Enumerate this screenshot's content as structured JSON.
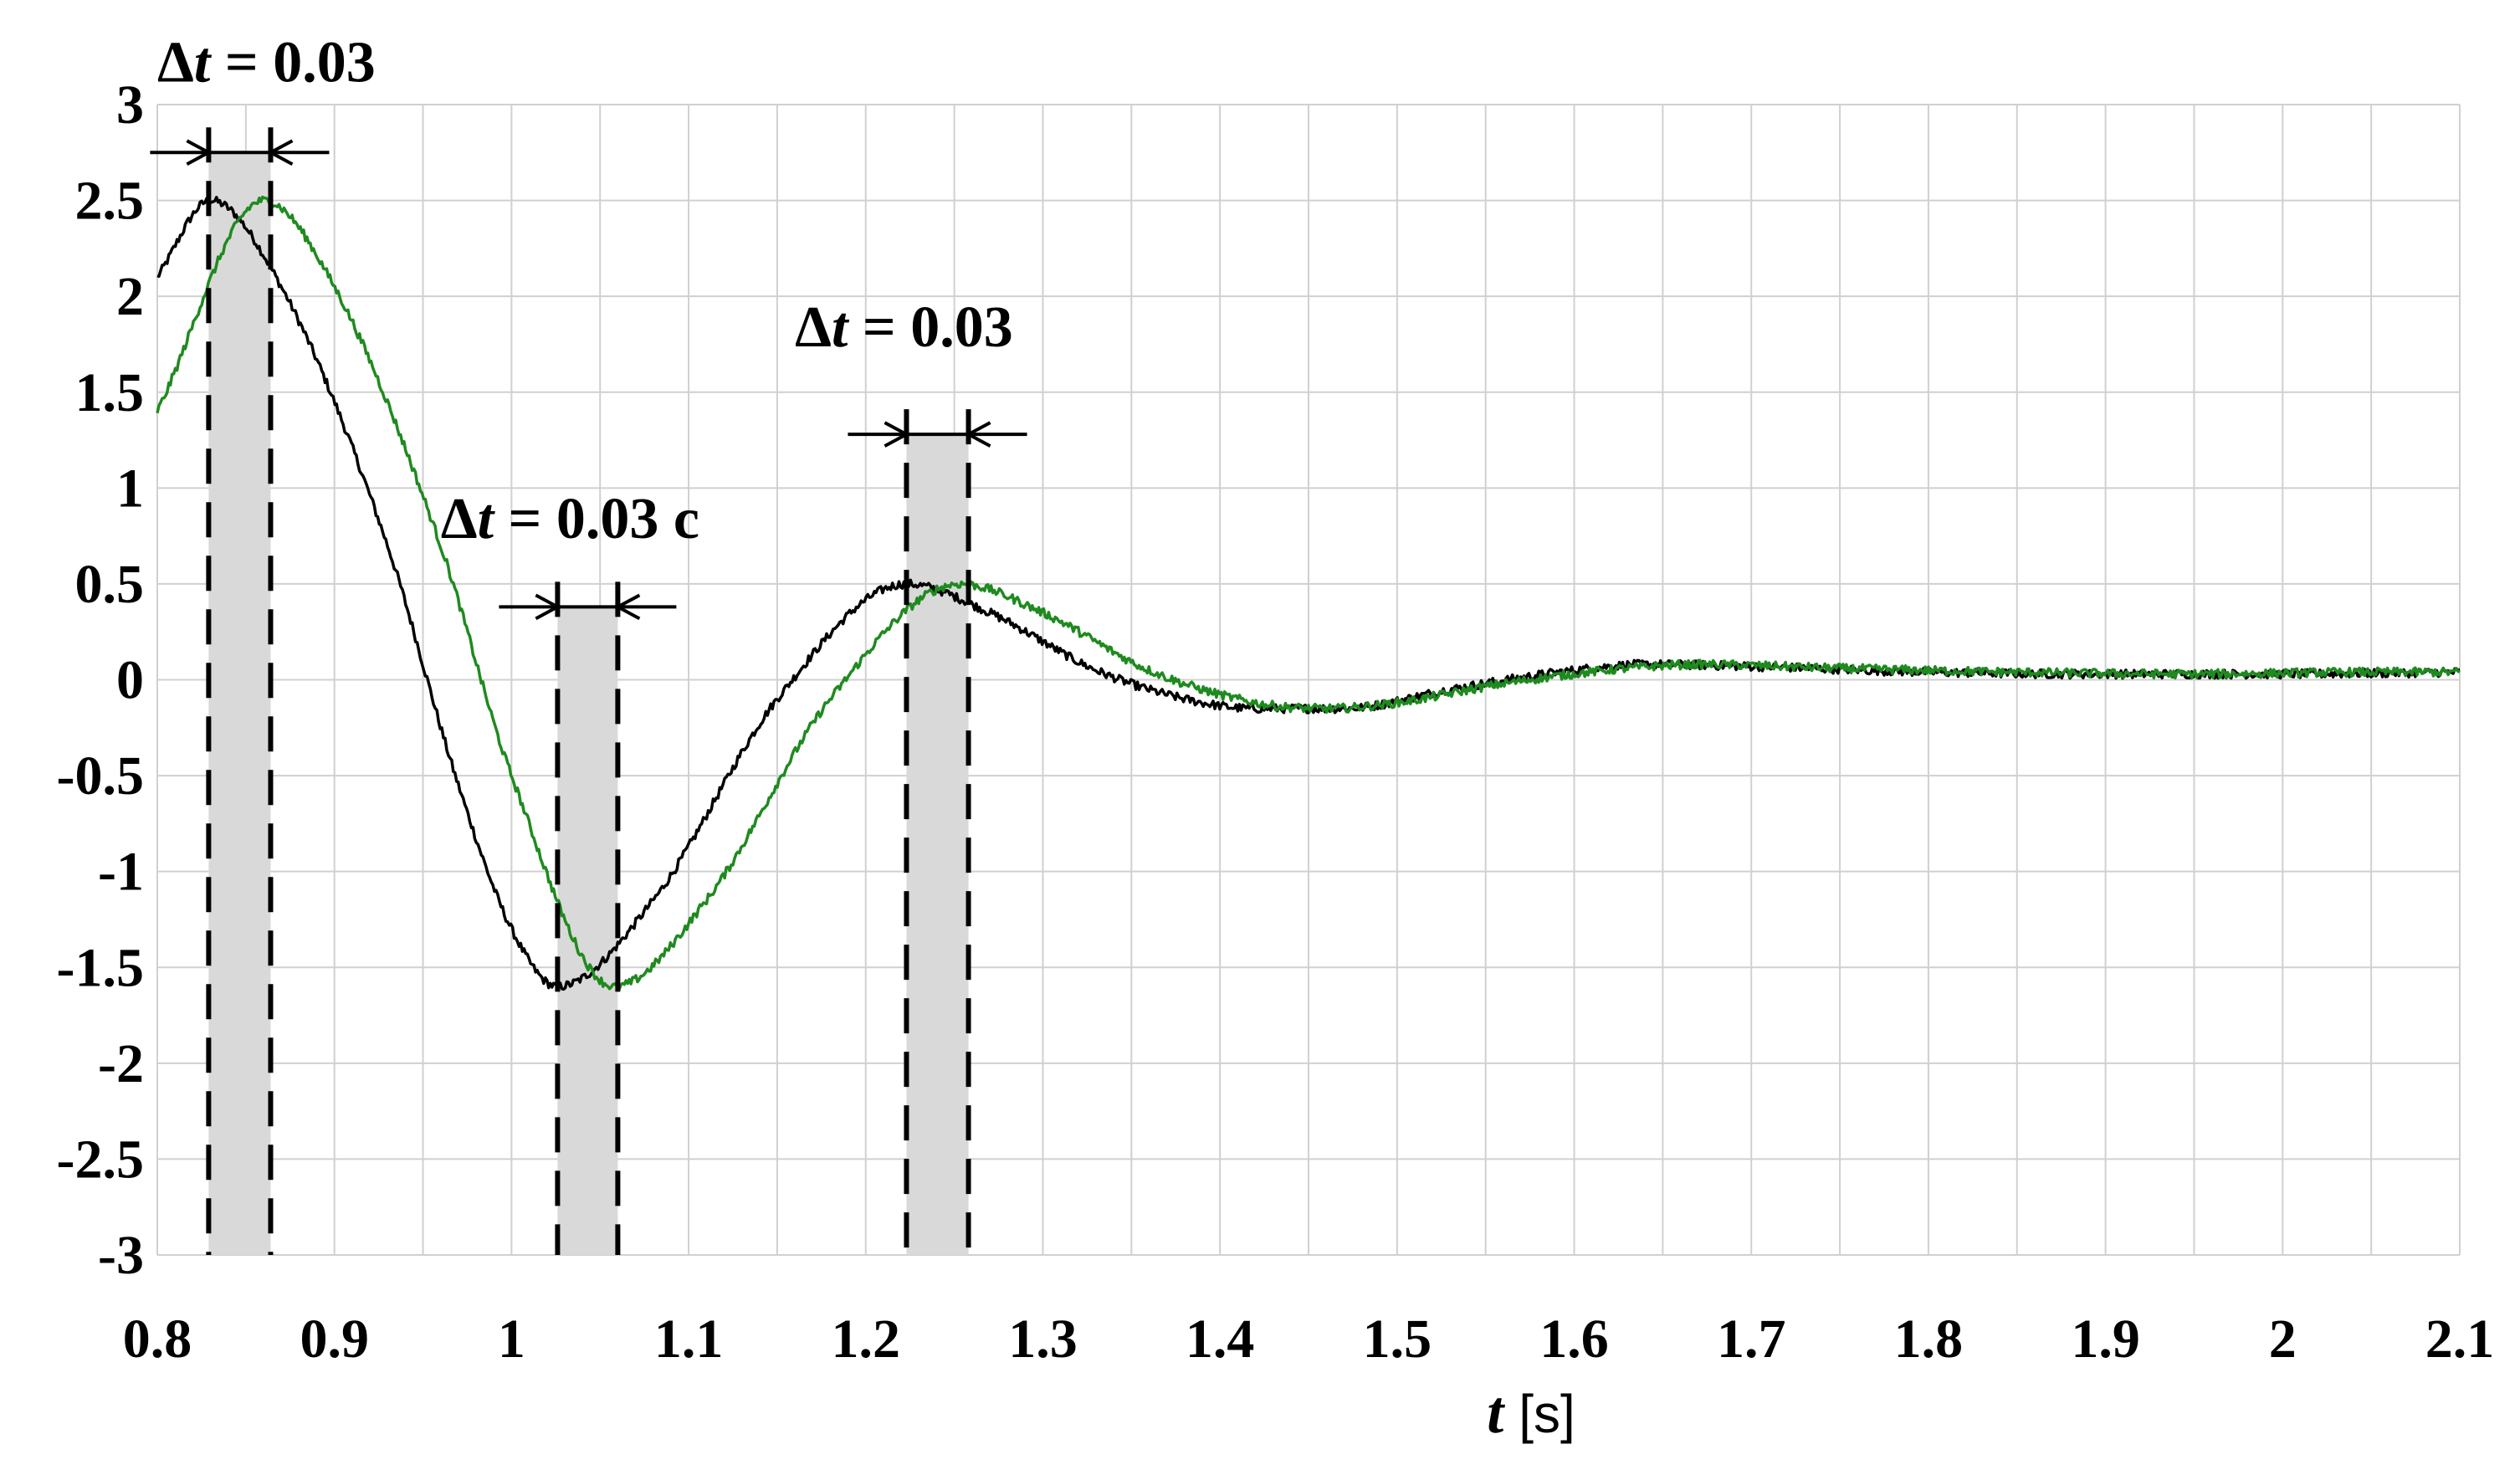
{
  "chart_data": {
    "type": "line",
    "title": "",
    "xlabel": {
      "var": "t",
      "unit": "[s]"
    },
    "ylabel": "",
    "xlim": [
      0.8,
      2.1
    ],
    "ylim": [
      -3,
      3
    ],
    "grid": true,
    "xticks": [
      "0.8",
      "0.9",
      "1",
      "1.1",
      "1.2",
      "1.3",
      "1.4",
      "1.5",
      "1.6",
      "1.7",
      "1.8",
      "1.9",
      "2",
      "2.1"
    ],
    "yticks": [
      "3",
      "2.5",
      "2",
      "1.5",
      "1",
      "0.5",
      "0",
      "-0.5",
      "-1",
      "-1.5",
      "-2",
      "-2.5",
      "-3"
    ],
    "colors": {
      "series_a": "#000000",
      "series_b": "#1f8a1f",
      "band": "#d9d9d9",
      "grid": "#d0d0d0"
    },
    "series": [
      {
        "color": "#000000",
        "x": [
          0.8,
          0.83,
          0.87,
          0.93,
          0.97,
          1.0,
          1.026,
          1.08,
          1.15,
          1.223,
          1.27,
          1.33,
          1.38,
          1.42,
          1.47,
          1.53,
          1.6,
          1.64,
          1.7,
          1.8,
          1.9,
          2.0,
          2.1
        ],
        "y": [
          2.1,
          2.5,
          2.05,
          0.7,
          -0.55,
          -1.3,
          -1.6,
          -1.15,
          -0.1,
          0.5,
          0.35,
          0.05,
          -0.1,
          -0.15,
          -0.15,
          -0.05,
          0.05,
          0.08,
          0.07,
          0.04,
          0.03,
          0.03,
          0.04
        ]
      },
      {
        "color": "#1f8a1f",
        "x": [
          0.8,
          0.86,
          0.9,
          0.96,
          1.0,
          1.058,
          1.11,
          1.18,
          1.253,
          1.3,
          1.36,
          1.42,
          1.46,
          1.5,
          1.56,
          1.63,
          1.67,
          1.75,
          1.85,
          1.95,
          2.05,
          2.1
        ],
        "y": [
          1.4,
          2.5,
          2.05,
          0.7,
          -0.5,
          -1.6,
          -1.15,
          -0.1,
          0.5,
          0.35,
          0.05,
          -0.12,
          -0.15,
          -0.12,
          -0.02,
          0.06,
          0.08,
          0.06,
          0.04,
          0.03,
          0.04,
          0.04
        ]
      }
    ],
    "annotations": [
      {
        "label": "Δt = 0.03",
        "prefix": "Δ",
        "var": "t",
        "value": " = 0.03",
        "band": [
          0.829,
          0.864
        ],
        "arrow_y": 2.75,
        "label_at": [
          0.8,
          3.12
        ]
      },
      {
        "label": "Δt = 0.03 c",
        "prefix": "Δ",
        "var": "t",
        "value": " = 0.03 c",
        "band": [
          1.026,
          1.06
        ],
        "arrow_y": 0.38,
        "label_at": [
          0.96,
          0.74
        ]
      },
      {
        "label": "Δt = 0.03",
        "prefix": "Δ",
        "var": "t",
        "value": " = 0.03",
        "band": [
          1.223,
          1.258
        ],
        "arrow_y": 1.28,
        "label_at": [
          1.16,
          1.74
        ]
      }
    ]
  }
}
